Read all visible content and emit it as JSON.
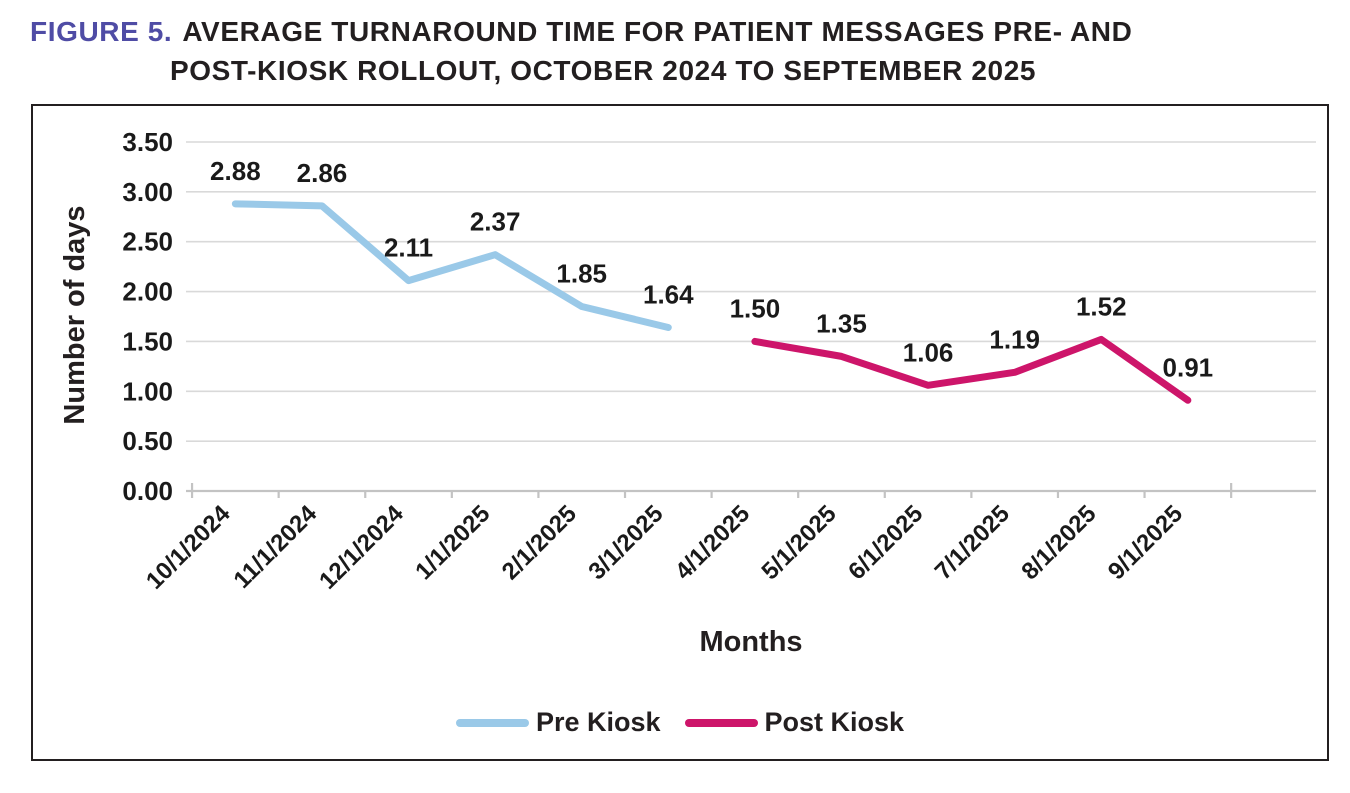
{
  "title": {
    "figure_label": "FIGURE 5.",
    "line1": "AVERAGE TURNAROUND TIME FOR PATIENT MESSAGES PRE- AND",
    "line2": "POST-KIOSK ROLLOUT, OCTOBER 2024 TO SEPTEMBER 2025"
  },
  "chart_data": {
    "type": "line",
    "title": "Average turnaround time for patient messages pre- and post-kiosk rollout, October 2024 to September 2025",
    "categories": [
      "10/1/2024",
      "11/1/2024",
      "12/1/2024",
      "1/1/2025",
      "2/1/2025",
      "3/1/2025",
      "4/1/2025",
      "5/1/2025",
      "6/1/2025",
      "7/1/2025",
      "8/1/2025",
      "9/1/2025"
    ],
    "series": [
      {
        "name": "Pre Kiosk",
        "color": "#9ac9e8",
        "values": [
          2.88,
          2.86,
          2.11,
          2.37,
          1.85,
          1.64,
          null,
          null,
          null,
          null,
          null,
          null
        ]
      },
      {
        "name": "Post Kiosk",
        "color": "#cd156a",
        "values": [
          null,
          null,
          null,
          null,
          null,
          null,
          1.5,
          1.35,
          1.06,
          1.19,
          1.52,
          0.91
        ]
      }
    ],
    "xlabel": "Months",
    "ylabel": "Number of days",
    "ylim": [
      0,
      3.5
    ],
    "ytick_step": 0.5,
    "ytick_labels": [
      "0.00",
      "0.50",
      "1.00",
      "1.50",
      "2.00",
      "2.50",
      "3.00",
      "3.50"
    ],
    "grid": "horizontal",
    "legend_position": "bottom",
    "data_labels": "shown, 2 decimals above each point"
  },
  "colors": {
    "figure_label": "#4f4ca5",
    "title_text": "#231f20",
    "grid_line": "#d9d9d9",
    "axis_line": "#c3c3c3",
    "label_text": "#1a1a1a",
    "frame_border": "#231f20",
    "pre_kiosk": "#9ac9e8",
    "post_kiosk": "#cd156a"
  }
}
